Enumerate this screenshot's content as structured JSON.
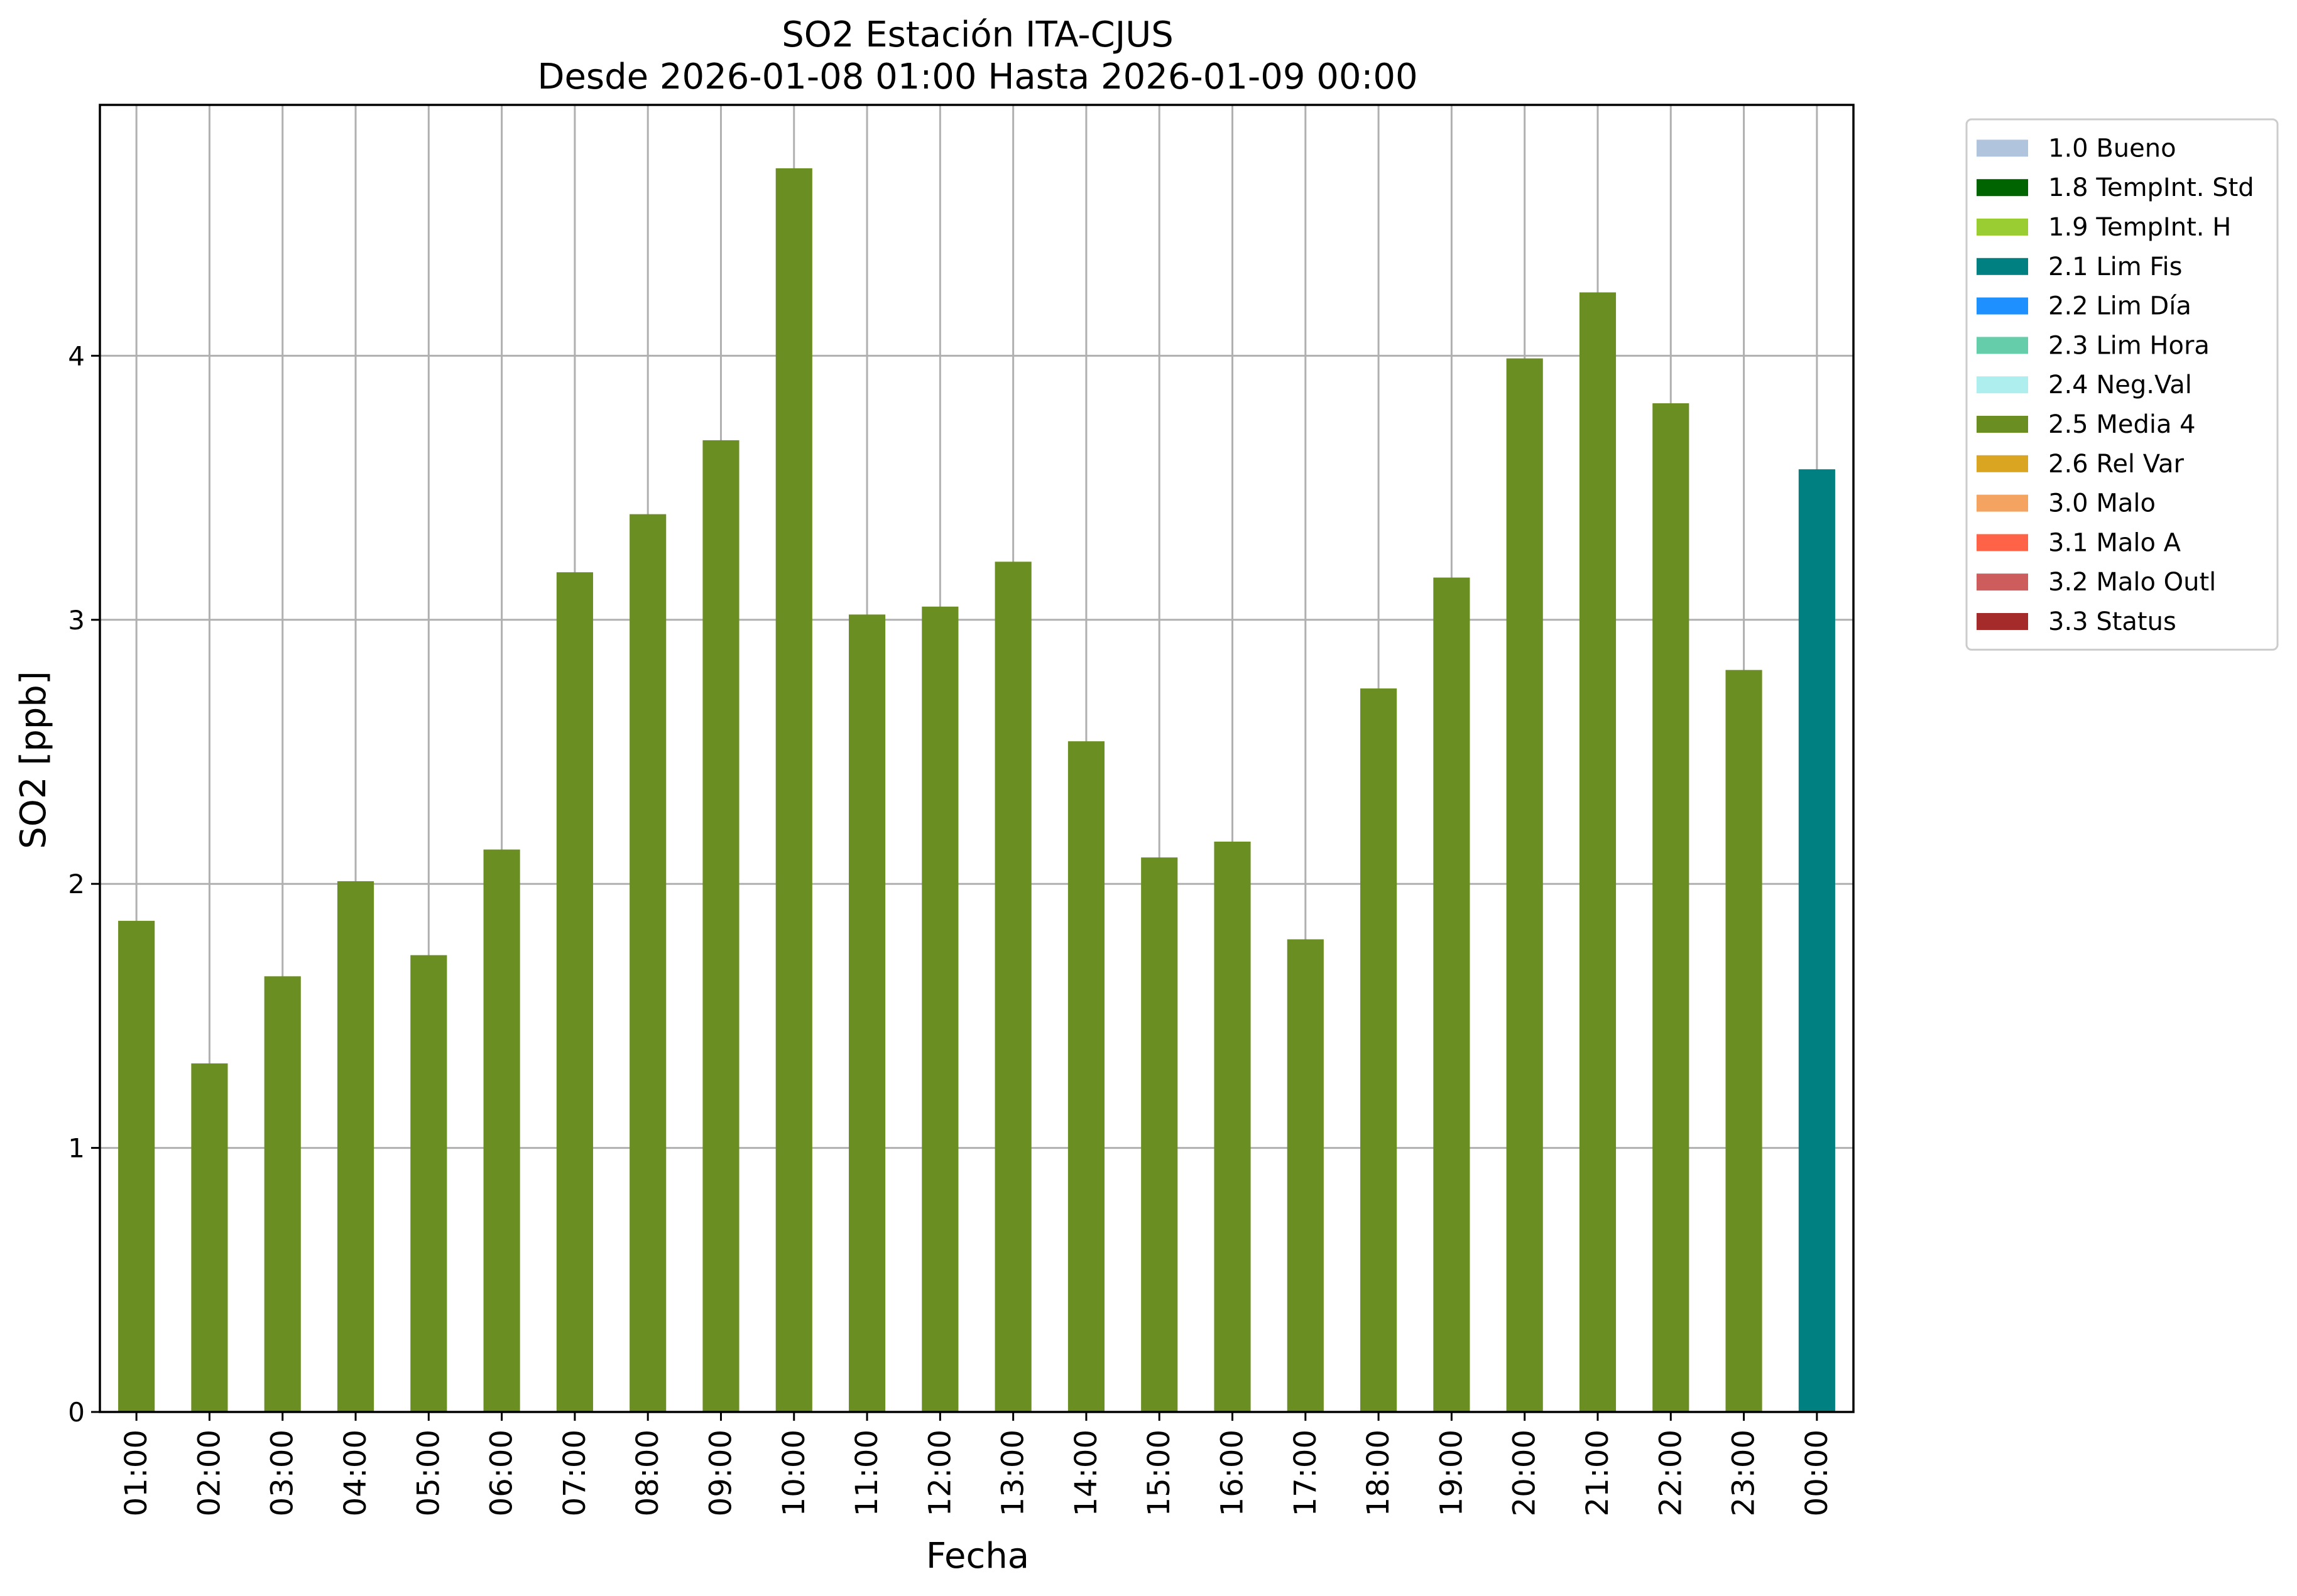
{
  "chart_data": {
    "type": "bar",
    "title": "SO2 Estación ITA-CJUS",
    "subtitle": "Desde 2026-01-08 01:00 Hasta 2026-01-09 00:00",
    "xlabel": "Fecha",
    "ylabel": "SO2 [ppb]",
    "ylim": [
      0,
      4.95
    ],
    "yticks": [
      0,
      1,
      2,
      3,
      4
    ],
    "grid": true,
    "legend_position": "outside right, top",
    "categories": [
      "01:00",
      "02:00",
      "03:00",
      "04:00",
      "05:00",
      "06:00",
      "07:00",
      "08:00",
      "09:00",
      "10:00",
      "11:00",
      "12:00",
      "13:00",
      "14:00",
      "15:00",
      "16:00",
      "17:00",
      "18:00",
      "19:00",
      "20:00",
      "21:00",
      "22:00",
      "23:00",
      "00:00"
    ],
    "values": [
      1.86,
      1.32,
      1.65,
      2.01,
      1.73,
      2.13,
      3.18,
      3.4,
      3.68,
      4.71,
      3.02,
      3.05,
      3.22,
      2.54,
      2.1,
      2.16,
      1.79,
      2.74,
      3.16,
      3.99,
      4.24,
      3.82,
      2.81,
      3.57
    ],
    "bar_flags": [
      "2.5 Media 4",
      "2.5 Media 4",
      "2.5 Media 4",
      "2.5 Media 4",
      "2.5 Media 4",
      "2.5 Media 4",
      "2.5 Media 4",
      "2.5 Media 4",
      "2.5 Media 4",
      "2.5 Media 4",
      "2.5 Media 4",
      "2.5 Media 4",
      "2.5 Media 4",
      "2.5 Media 4",
      "2.5 Media 4",
      "2.5 Media 4",
      "2.5 Media 4",
      "2.5 Media 4",
      "2.5 Media 4",
      "2.5 Media 4",
      "2.5 Media 4",
      "2.5 Media 4",
      "2.5 Media 4",
      "2.1 Lim Fis"
    ],
    "legend": [
      {
        "label": "1.0 Bueno",
        "color": "#b0c4de"
      },
      {
        "label": "1.8 TempInt. Std",
        "color": "#006400"
      },
      {
        "label": "1.9 TempInt. H",
        "color": "#9acd32"
      },
      {
        "label": "2.1 Lim Fis",
        "color": "#008080"
      },
      {
        "label": "2.2 Lim Día",
        "color": "#1e90ff"
      },
      {
        "label": "2.3 Lim Hora",
        "color": "#66cdaa"
      },
      {
        "label": "2.4 Neg.Val",
        "color": "#afeeee"
      },
      {
        "label": "2.5 Media 4",
        "color": "#6b8e23"
      },
      {
        "label": "2.6 Rel Var",
        "color": "#daa520"
      },
      {
        "label": "3.0 Malo",
        "color": "#f4a460"
      },
      {
        "label": "3.1 Malo A",
        "color": "#ff6347"
      },
      {
        "label": "3.2 Malo Outl",
        "color": "#cd5c5c"
      },
      {
        "label": "3.3 Status",
        "color": "#a52a2a"
      }
    ]
  }
}
